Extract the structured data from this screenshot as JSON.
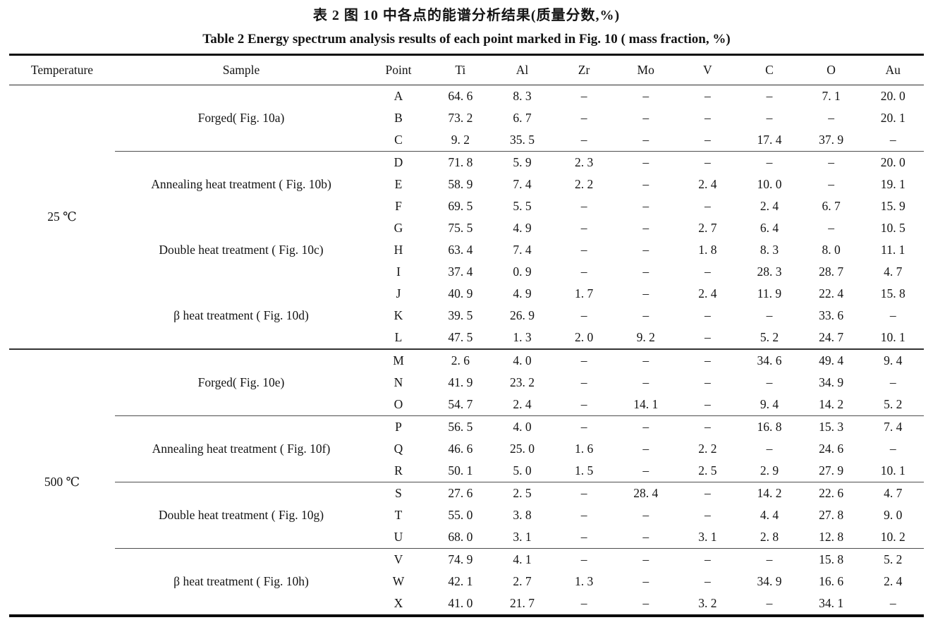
{
  "page": {
    "title_zh": "表 2  图 10 中各点的能谱分析结果(质量分数,%)",
    "title_en": "Table 2  Energy spectrum analysis results of each point marked in Fig. 10 ( mass fraction, %)"
  },
  "table": {
    "columns": [
      "Temperature",
      "Sample",
      "Point",
      "Ti",
      "Al",
      "Zr",
      "Mo",
      "V",
      "C",
      "O",
      "Au"
    ],
    "dash": "–",
    "sections": [
      {
        "temperature": "25 ℃",
        "groups": [
          {
            "sample": "Forged( Fig. 10a)",
            "divider_after": true,
            "rows": [
              {
                "point": "A",
                "values": [
                  "64. 6",
                  "8. 3",
                  "–",
                  "–",
                  "–",
                  "–",
                  "7. 1",
                  "20. 0"
                ]
              },
              {
                "point": "B",
                "values": [
                  "73. 2",
                  "6. 7",
                  "–",
                  "–",
                  "–",
                  "–",
                  "–",
                  "20. 1"
                ]
              },
              {
                "point": "C",
                "values": [
                  "9. 2",
                  "35. 5",
                  "–",
                  "–",
                  "–",
                  "17. 4",
                  "37. 9",
                  "–"
                ]
              }
            ]
          },
          {
            "sample": "Annealing heat treatment ( Fig. 10b)",
            "divider_after": false,
            "rows": [
              {
                "point": "D",
                "values": [
                  "71. 8",
                  "5. 9",
                  "2. 3",
                  "–",
                  "–",
                  "–",
                  "–",
                  "20. 0"
                ]
              },
              {
                "point": "E",
                "values": [
                  "58. 9",
                  "7. 4",
                  "2. 2",
                  "–",
                  "2. 4",
                  "10. 0",
                  "–",
                  "19. 1"
                ]
              },
              {
                "point": "F",
                "values": [
                  "69. 5",
                  "5. 5",
                  "–",
                  "–",
                  "–",
                  "2. 4",
                  "6. 7",
                  "15. 9"
                ]
              }
            ]
          },
          {
            "sample": "Double heat treatment ( Fig. 10c)",
            "divider_after": false,
            "rows": [
              {
                "point": "G",
                "values": [
                  "75. 5",
                  "4. 9",
                  "–",
                  "–",
                  "2. 7",
                  "6. 4",
                  "–",
                  "10. 5"
                ]
              },
              {
                "point": "H",
                "values": [
                  "63. 4",
                  "7. 4",
                  "–",
                  "–",
                  "1. 8",
                  "8. 3",
                  "8. 0",
                  "11. 1"
                ]
              },
              {
                "point": "I",
                "values": [
                  "37. 4",
                  "0. 9",
                  "–",
                  "–",
                  "–",
                  "28. 3",
                  "28. 7",
                  "4. 7"
                ]
              }
            ]
          },
          {
            "sample": "β heat treatment ( Fig. 10d)",
            "divider_after": false,
            "rows": [
              {
                "point": "J",
                "values": [
                  "40. 9",
                  "4. 9",
                  "1. 7",
                  "–",
                  "2. 4",
                  "11. 9",
                  "22. 4",
                  "15. 8"
                ]
              },
              {
                "point": "K",
                "values": [
                  "39. 5",
                  "26. 9",
                  "–",
                  "–",
                  "–",
                  "–",
                  "33. 6",
                  "–"
                ]
              },
              {
                "point": "L",
                "values": [
                  "47. 5",
                  "1. 3",
                  "2. 0",
                  "9. 2",
                  "–",
                  "5. 2",
                  "24. 7",
                  "10. 1"
                ]
              }
            ]
          }
        ]
      },
      {
        "temperature": "500 ℃",
        "groups": [
          {
            "sample": "Forged( Fig. 10e)",
            "divider_after": true,
            "rows": [
              {
                "point": "M",
                "values": [
                  "2. 6",
                  "4. 0",
                  "–",
                  "–",
                  "–",
                  "34. 6",
                  "49. 4",
                  "9. 4"
                ]
              },
              {
                "point": "N",
                "values": [
                  "41. 9",
                  "23. 2",
                  "–",
                  "–",
                  "–",
                  "–",
                  "34. 9",
                  "–"
                ]
              },
              {
                "point": "O",
                "values": [
                  "54. 7",
                  "2. 4",
                  "–",
                  "14. 1",
                  "–",
                  "9. 4",
                  "14. 2",
                  "5. 2"
                ]
              }
            ]
          },
          {
            "sample": "Annealing heat treatment ( Fig. 10f)",
            "divider_after": true,
            "rows": [
              {
                "point": "P",
                "values": [
                  "56. 5",
                  "4. 0",
                  "–",
                  "–",
                  "–",
                  "16. 8",
                  "15. 3",
                  "7. 4"
                ]
              },
              {
                "point": "Q",
                "values": [
                  "46. 6",
                  "25. 0",
                  "1. 6",
                  "–",
                  "2. 2",
                  "–",
                  "24. 6",
                  "–"
                ]
              },
              {
                "point": "R",
                "values": [
                  "50. 1",
                  "5. 0",
                  "1. 5",
                  "–",
                  "2. 5",
                  "2. 9",
                  "27. 9",
                  "10. 1"
                ]
              }
            ]
          },
          {
            "sample": "Double heat treatment ( Fig. 10g)",
            "divider_after": true,
            "rows": [
              {
                "point": "S",
                "values": [
                  "27. 6",
                  "2. 5",
                  "–",
                  "28. 4",
                  "–",
                  "14. 2",
                  "22. 6",
                  "4. 7"
                ]
              },
              {
                "point": "T",
                "values": [
                  "55. 0",
                  "3. 8",
                  "–",
                  "–",
                  "–",
                  "4. 4",
                  "27. 8",
                  "9. 0"
                ]
              },
              {
                "point": "U",
                "values": [
                  "68. 0",
                  "3. 1",
                  "–",
                  "–",
                  "3. 1",
                  "2. 8",
                  "12. 8",
                  "10. 2"
                ]
              }
            ]
          },
          {
            "sample": "β heat treatment ( Fig. 10h)",
            "divider_after": false,
            "rows": [
              {
                "point": "V",
                "values": [
                  "74. 9",
                  "4. 1",
                  "–",
                  "–",
                  "–",
                  "–",
                  "15. 8",
                  "5. 2"
                ]
              },
              {
                "point": "W",
                "values": [
                  "42. 1",
                  "2. 7",
                  "1. 3",
                  "–",
                  "–",
                  "34. 9",
                  "16. 6",
                  "2. 4"
                ]
              },
              {
                "point": "X",
                "values": [
                  "41. 0",
                  "21. 7",
                  "–",
                  "–",
                  "3. 2",
                  "–",
                  "34. 1",
                  "–"
                ]
              }
            ]
          }
        ]
      }
    ]
  }
}
